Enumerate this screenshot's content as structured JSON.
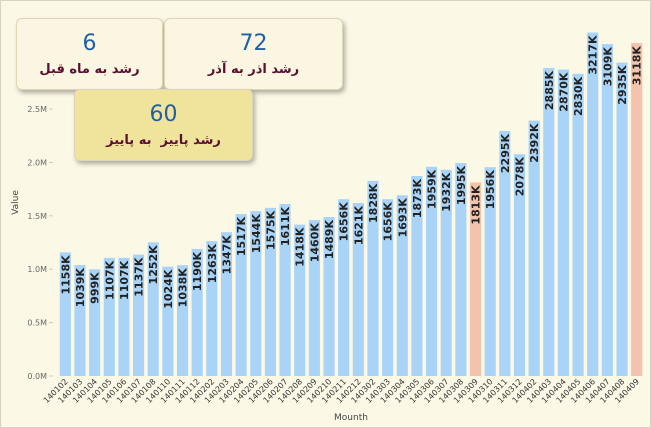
{
  "kpis": [
    {
      "value": "6",
      "label": "رشد به ماه قبل"
    },
    {
      "value": "72",
      "label": "رشد اذر به آذر"
    },
    {
      "value": "60",
      "label": "رشد پاییز  به پاییز"
    }
  ],
  "chart_data": {
    "type": "bar",
    "y_label": "Value",
    "x_label": "Mounth",
    "categories": [
      "140102",
      "140103",
      "140104",
      "140105",
      "140106",
      "140107",
      "140108",
      "140110",
      "140111",
      "140112",
      "140202",
      "140203",
      "140204",
      "140205",
      "140206",
      "140207",
      "140208",
      "140209",
      "140210",
      "140211",
      "140212",
      "140302",
      "140303",
      "140304",
      "140305",
      "140306",
      "140307",
      "140308",
      "140309",
      "140310",
      "140311",
      "140312",
      "140402",
      "140403",
      "140404",
      "140405",
      "140406",
      "140407",
      "140408",
      "140409"
    ],
    "values": [
      1158000,
      1039000,
      999000,
      1107000,
      1107000,
      1137000,
      1252000,
      1024000,
      1038000,
      1190000,
      1263000,
      1347000,
      1517000,
      1544000,
      1575000,
      1611000,
      1418000,
      1460000,
      1489000,
      1656000,
      1621000,
      1828000,
      1656000,
      1693000,
      1873000,
      1959000,
      1932000,
      1995000,
      1813000,
      1956000,
      2295000,
      2078000,
      2392000,
      2885000,
      2870000,
      2830000,
      3217000,
      3109000,
      2935000,
      3118000
    ],
    "value_labels": [
      "1158K",
      "1039K",
      "999K",
      "1107K",
      "1107K",
      "1137K",
      "1252K",
      "1024K",
      "1038K",
      "1190K",
      "1263K",
      "1347K",
      "1517K",
      "1544K",
      "1575K",
      "1611K",
      "1418K",
      "1460K",
      "1489K",
      "1656K",
      "1621K",
      "1828K",
      "1656K",
      "1693K",
      "1873K",
      "1959K",
      "1932K",
      "1995K",
      "1813K",
      "1956K",
      "2295K",
      "2078K",
      "2392K",
      "2885K",
      "2870K",
      "2830K",
      "3217K",
      "3109K",
      "2935K",
      "3118K"
    ],
    "colors": [
      "#a9d4f7",
      "#a9d4f7",
      "#a9d4f7",
      "#a9d4f7",
      "#a9d4f7",
      "#a9d4f7",
      "#a9d4f7",
      "#a9d4f7",
      "#a9d4f7",
      "#a9d4f7",
      "#a9d4f7",
      "#a9d4f7",
      "#a9d4f7",
      "#a9d4f7",
      "#a9d4f7",
      "#a9d4f7",
      "#a9d4f7",
      "#a9d4f7",
      "#a9d4f7",
      "#a9d4f7",
      "#a9d4f7",
      "#a9d4f7",
      "#a9d4f7",
      "#a9d4f7",
      "#a9d4f7",
      "#a9d4f7",
      "#a9d4f7",
      "#a9d4f7",
      "#f4c3ad",
      "#a9d4f7",
      "#a9d4f7",
      "#a9d4f7",
      "#a9d4f7",
      "#a9d4f7",
      "#a9d4f7",
      "#a9d4f7",
      "#a9d4f7",
      "#a9d4f7",
      "#a9d4f7",
      "#f4c3ad"
    ],
    "ylim": [
      0,
      3250000
    ],
    "yticks": [
      {
        "value": 0,
        "label": "0.0M"
      },
      {
        "value": 500000,
        "label": "0.5M"
      },
      {
        "value": 1000000,
        "label": "1.0M"
      },
      {
        "value": 1500000,
        "label": "1.5M"
      },
      {
        "value": 2000000,
        "label": "2.0M"
      },
      {
        "value": 2500000,
        "label": "2.5M"
      }
    ]
  }
}
